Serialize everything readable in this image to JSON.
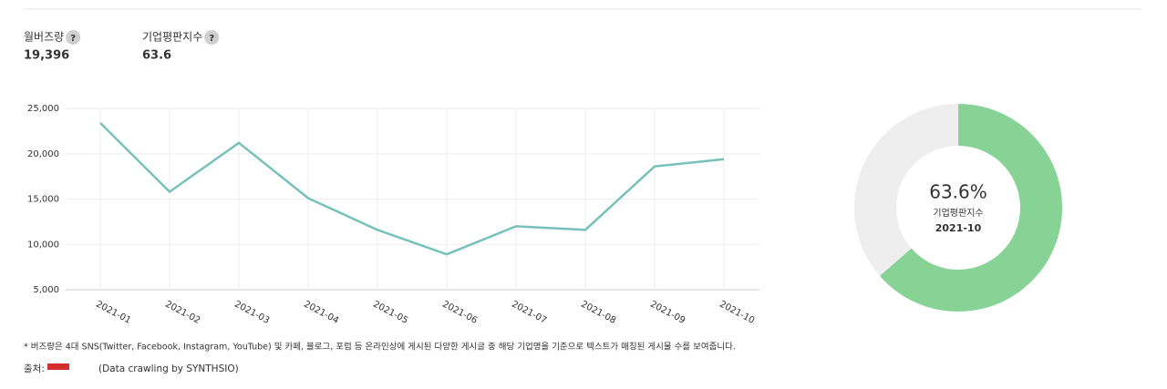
{
  "stats": [
    {
      "label": "월버즈량",
      "help": "?",
      "value": "19,396"
    },
    {
      "label": "기업평판지수",
      "help": "?",
      "value": "63.6"
    }
  ],
  "chart_data": [
    {
      "type": "line",
      "categories": [
        "2021-01",
        "2021-02",
        "2021-03",
        "2021-04",
        "2021-05",
        "2021-06",
        "2021-07",
        "2021-08",
        "2021-09",
        "2021-10"
      ],
      "series": [
        {
          "name": null,
          "color": "#76c2bb",
          "values": [
            23400,
            15800,
            21200,
            15100,
            11600,
            8900,
            12000,
            11600,
            18600,
            19396
          ]
        }
      ],
      "ylim": [
        5000,
        25000
      ],
      "yticks": [
        {
          "value": 5000,
          "label": "5,000"
        },
        {
          "value": 10000,
          "label": "10,000"
        },
        {
          "value": 15000,
          "label": "15,000"
        },
        {
          "value": 20000,
          "label": "20,000"
        },
        {
          "value": 25000,
          "label": "25,000"
        }
      ],
      "grid": true
    },
    {
      "type": "donut",
      "values": [
        63.6
      ],
      "value_labels": [
        "63.6%"
      ],
      "color": "#86d395",
      "track_color": "#eeeeee",
      "center_label": "기업평판지수",
      "center_date": "2021-10"
    }
  ],
  "footnote": "* 버즈량은 4대 SNS(Twitter, Facebook, Instagram, YouTube) 및 카페, 블로그, 포럼 등 온라인상에 게시된 다양한 게시글 중 해당 기업명을 기준으로 텍스트가 매칭된 게시물 수를 보여줍니다.",
  "source_label": "출처:",
  "source_text": "(Data crawling by SYNTHSIO)"
}
